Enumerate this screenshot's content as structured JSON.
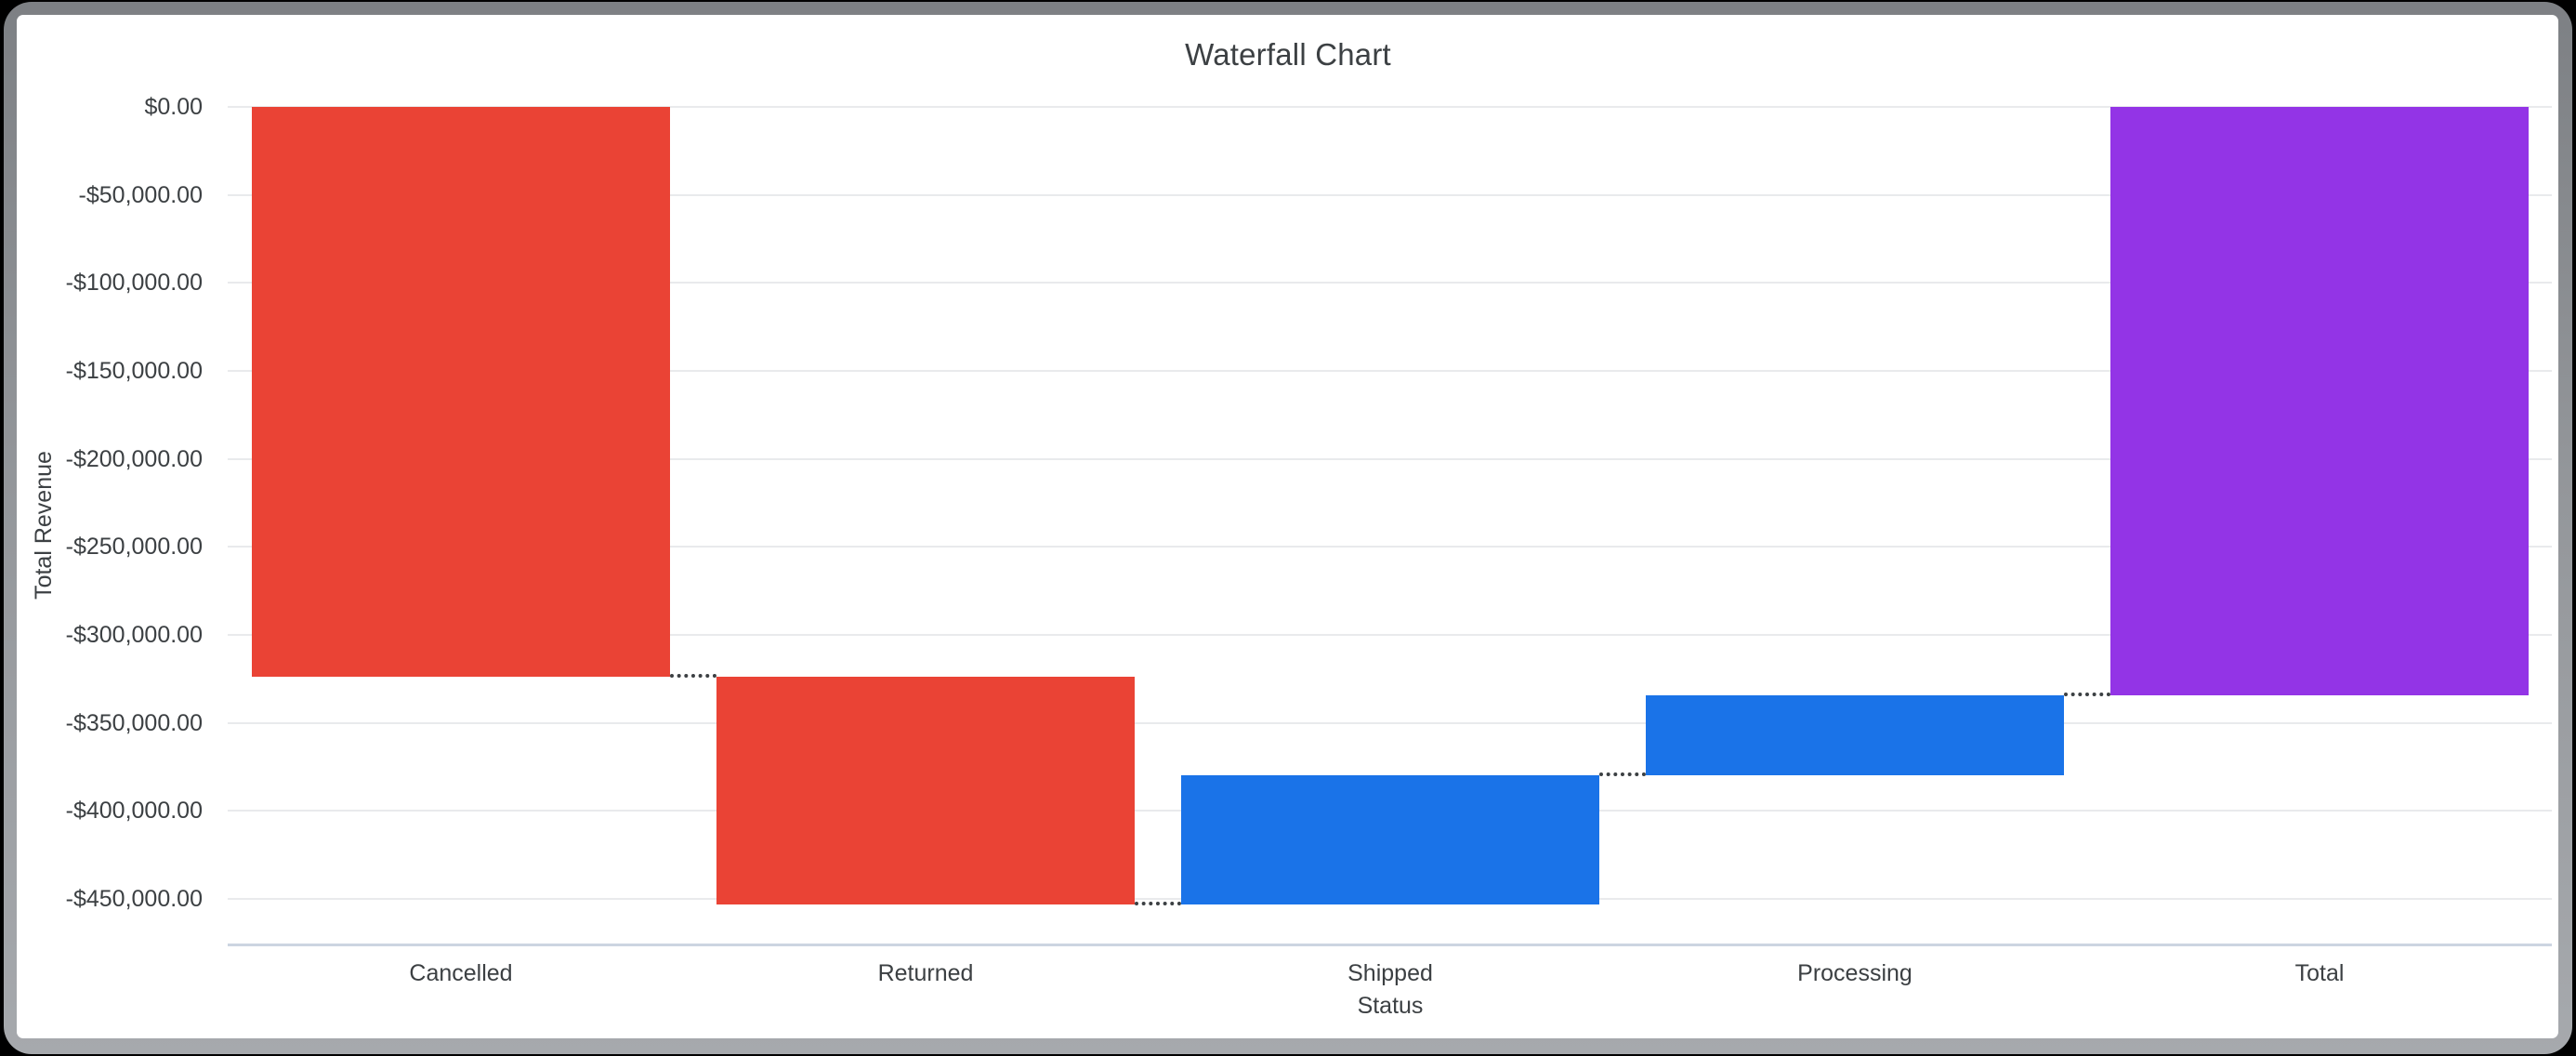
{
  "window": {
    "frame_color": "#93969a",
    "card_bg": "#ffffff",
    "outer_bg": "#000000"
  },
  "chart_data": {
    "type": "bar",
    "variant": "waterfall",
    "title": "Waterfall Chart",
    "xlabel": "Status",
    "ylabel": "Total Revenue",
    "grid": true,
    "legend": "none",
    "connector_style": "dotted",
    "categories": [
      "Cancelled",
      "Returned",
      "Shipped",
      "Processing",
      "Total"
    ],
    "bars": [
      {
        "category": "Cancelled",
        "kind": "decrease",
        "value": -323600,
        "start": 0,
        "end": -323600,
        "color": "#ea4335"
      },
      {
        "category": "Returned",
        "kind": "decrease",
        "value": -129600,
        "start": -323600,
        "end": -453200,
        "color": "#ea4335"
      },
      {
        "category": "Shipped",
        "kind": "increase",
        "value": 73200,
        "start": -453200,
        "end": -380000,
        "color": "#1a73e8"
      },
      {
        "category": "Processing",
        "kind": "increase",
        "value": 45500,
        "start": -380000,
        "end": -334500,
        "color": "#1a73e8"
      },
      {
        "category": "Total",
        "kind": "total",
        "value": -334500,
        "start": 0,
        "end": -334500,
        "color": "#9334e6"
      }
    ],
    "y_ticks": [
      {
        "value": 0,
        "label": "$0.00"
      },
      {
        "value": -50000,
        "label": "-$50,000.00"
      },
      {
        "value": -100000,
        "label": "-$100,000.00"
      },
      {
        "value": -150000,
        "label": "-$150,000.00"
      },
      {
        "value": -200000,
        "label": "-$200,000.00"
      },
      {
        "value": -250000,
        "label": "-$250,000.00"
      },
      {
        "value": -300000,
        "label": "-$300,000.00"
      },
      {
        "value": -350000,
        "label": "-$350,000.00"
      },
      {
        "value": -400000,
        "label": "-$400,000.00"
      },
      {
        "value": -450000,
        "label": "-$450,000.00"
      }
    ],
    "ylim": [
      -476000,
      0
    ],
    "colors": {
      "decrease": "#ea4335",
      "increase": "#1a73e8",
      "total": "#9334e6",
      "gridline": "#e9eaec",
      "axis_line": "#ccd5e1",
      "text": "#3c4043"
    }
  }
}
